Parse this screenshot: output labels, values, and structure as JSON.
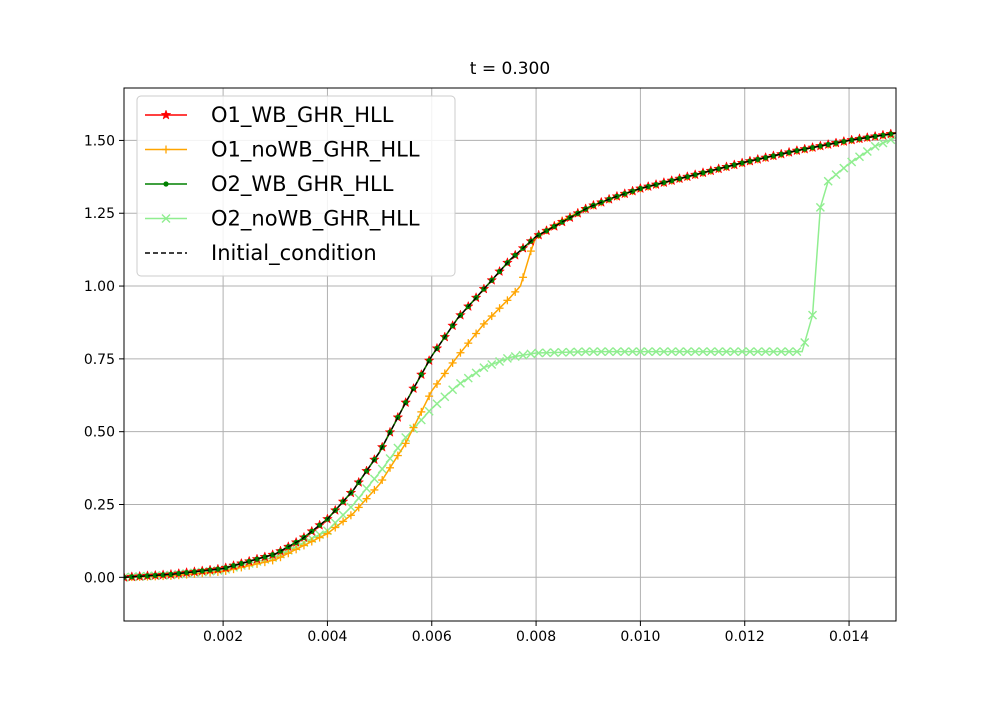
{
  "chart_data": {
    "type": "line",
    "title": "t = 0.300",
    "xlabel": "",
    "ylabel": "",
    "xlim": [
      0.0001,
      0.0149
    ],
    "ylim": [
      -0.15,
      1.68
    ],
    "xticks": [
      0.002,
      0.004,
      0.006,
      0.008,
      0.01,
      0.012,
      0.014
    ],
    "xtick_labels": [
      "0.002",
      "0.004",
      "0.006",
      "0.008",
      "0.010",
      "0.012",
      "0.014"
    ],
    "yticks": [
      0.0,
      0.25,
      0.5,
      0.75,
      1.0,
      1.25,
      1.5
    ],
    "ytick_labels": [
      "0.00",
      "0.25",
      "0.50",
      "0.75",
      "1.00",
      "1.25",
      "1.50"
    ],
    "grid": true,
    "legend_position": "top-left",
    "marker_spacing": 0.00015,
    "series": [
      {
        "name": "O1_WB_GHR_HLL",
        "color": "#ff0000",
        "marker": "star",
        "linestyle": "solid",
        "x": [
          0.0001,
          0.001,
          0.002,
          0.003,
          0.0035,
          0.004,
          0.0045,
          0.005,
          0.0055,
          0.006,
          0.0065,
          0.007,
          0.0075,
          0.008,
          0.0085,
          0.009,
          0.0095,
          0.01,
          0.011,
          0.012,
          0.013,
          0.014,
          0.0149
        ],
        "y": [
          0.0,
          0.01,
          0.03,
          0.08,
          0.13,
          0.2,
          0.3,
          0.43,
          0.6,
          0.76,
          0.89,
          0.99,
          1.09,
          1.17,
          1.22,
          1.27,
          1.305,
          1.335,
          1.38,
          1.425,
          1.465,
          1.5,
          1.525
        ]
      },
      {
        "name": "O1_noWB_GHR_HLL",
        "color": "#ffa500",
        "marker": "plus",
        "linestyle": "solid",
        "x": [
          0.0001,
          0.001,
          0.002,
          0.003,
          0.004,
          0.0045,
          0.005,
          0.0055,
          0.006,
          0.0065,
          0.007,
          0.0075,
          0.0077,
          0.0079,
          0.008,
          0.0085,
          0.009,
          0.0095,
          0.01,
          0.011,
          0.012,
          0.013,
          0.014,
          0.0149
        ],
        "y": [
          0.0,
          0.005,
          0.02,
          0.06,
          0.15,
          0.22,
          0.32,
          0.46,
          0.64,
          0.76,
          0.87,
          0.96,
          1.0,
          1.12,
          1.17,
          1.225,
          1.27,
          1.305,
          1.335,
          1.38,
          1.425,
          1.465,
          1.5,
          1.525
        ]
      },
      {
        "name": "O2_WB_GHR_HLL",
        "color": "#008000",
        "marker": "dot",
        "linestyle": "solid",
        "x": [
          0.0001,
          0.001,
          0.002,
          0.003,
          0.0035,
          0.004,
          0.0045,
          0.005,
          0.0055,
          0.006,
          0.0065,
          0.007,
          0.0075,
          0.008,
          0.0085,
          0.009,
          0.0095,
          0.01,
          0.011,
          0.012,
          0.013,
          0.014,
          0.0149
        ],
        "y": [
          0.0,
          0.01,
          0.03,
          0.08,
          0.13,
          0.2,
          0.3,
          0.43,
          0.6,
          0.76,
          0.89,
          0.99,
          1.09,
          1.17,
          1.22,
          1.27,
          1.305,
          1.335,
          1.38,
          1.425,
          1.465,
          1.5,
          1.525
        ]
      },
      {
        "name": "O2_noWB_GHR_HLL",
        "color": "#90ee90",
        "marker": "x",
        "linestyle": "solid",
        "x": [
          0.0001,
          0.001,
          0.002,
          0.003,
          0.004,
          0.0045,
          0.005,
          0.0055,
          0.006,
          0.0065,
          0.007,
          0.0075,
          0.008,
          0.009,
          0.01,
          0.011,
          0.012,
          0.0131,
          0.0133,
          0.01345,
          0.0136,
          0.014,
          0.0145,
          0.0149
        ],
        "y": [
          0.0,
          0.008,
          0.025,
          0.07,
          0.16,
          0.25,
          0.36,
          0.48,
          0.58,
          0.66,
          0.72,
          0.755,
          0.77,
          0.775,
          0.775,
          0.775,
          0.775,
          0.775,
          0.9,
          1.27,
          1.36,
          1.42,
          1.48,
          1.51
        ]
      },
      {
        "name": "Initial_condition",
        "color": "#000000",
        "marker": "none",
        "linestyle": "dashed",
        "x": [
          0.0001,
          0.001,
          0.002,
          0.003,
          0.0035,
          0.004,
          0.0045,
          0.005,
          0.0055,
          0.006,
          0.0065,
          0.007,
          0.0075,
          0.008,
          0.0085,
          0.009,
          0.0095,
          0.01,
          0.011,
          0.012,
          0.013,
          0.014,
          0.0149
        ],
        "y": [
          0.0,
          0.01,
          0.03,
          0.08,
          0.13,
          0.2,
          0.3,
          0.43,
          0.6,
          0.76,
          0.89,
          0.99,
          1.09,
          1.17,
          1.22,
          1.27,
          1.305,
          1.335,
          1.38,
          1.425,
          1.465,
          1.5,
          1.525
        ]
      }
    ]
  }
}
